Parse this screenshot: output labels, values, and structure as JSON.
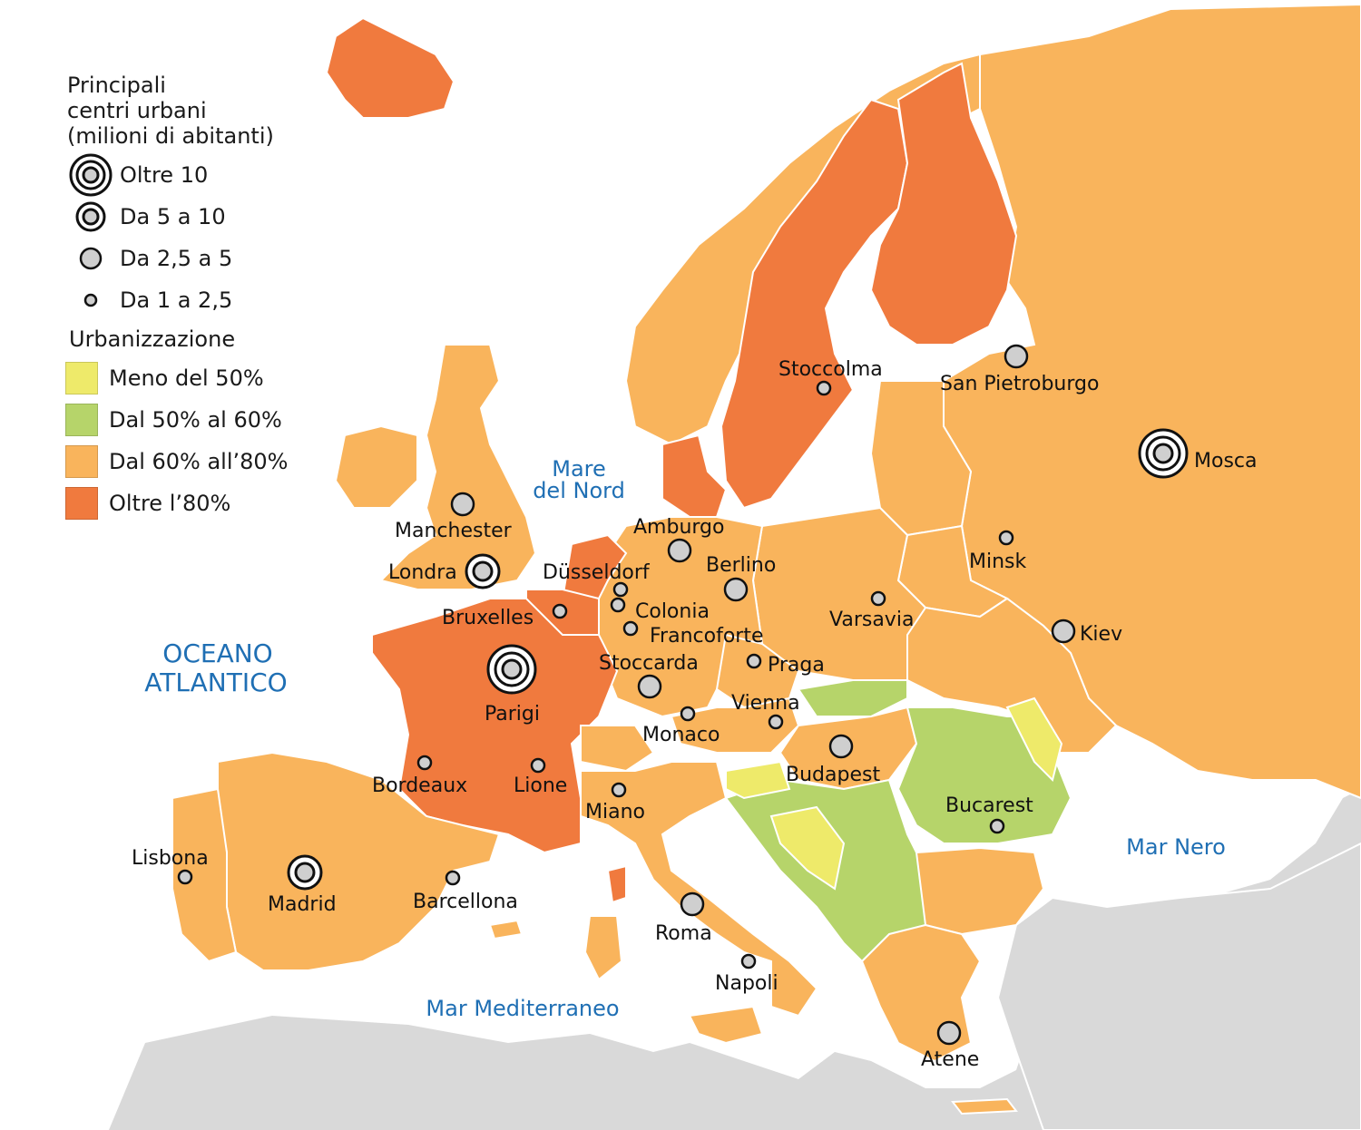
{
  "legend": {
    "cities_title_lines": [
      "Principali",
      "centri urbani",
      "(milioni di abitanti)"
    ],
    "sizes": [
      {
        "label": "Oltre 10",
        "icon": "triple-ring-icon"
      },
      {
        "label": "Da 5 a 10",
        "icon": "double-ring-icon"
      },
      {
        "label": "Da 2,5 a 5",
        "icon": "medium-dot-icon"
      },
      {
        "label": "Da 1 a 2,5",
        "icon": "small-dot-icon"
      }
    ],
    "urbanization_title": "Urbanizzazione",
    "classes": [
      {
        "label": "Meno del 50%",
        "color": "#eeea6a"
      },
      {
        "label": "Dal 50% al 60%",
        "color": "#b6d46a"
      },
      {
        "label": "Dal 60% all’80%",
        "color": "#f9b45c"
      },
      {
        "label": "Oltre l’80%",
        "color": "#f07a3e"
      }
    ]
  },
  "seas": {
    "atlantic_line1": "OCEANO",
    "atlantic_line2": "ATLANTICO",
    "north_sea_line1": "Mare",
    "north_sea_line2": "del Nord",
    "mediterranean": "Mar Mediterraneo",
    "black_sea": "Mar Nero"
  },
  "cities": {
    "mosca": "Mosca",
    "londra": "Londra",
    "parigi": "Parigi",
    "madrid": "Madrid",
    "manchester": "Manchester",
    "san_pietroburgo": "San Pietroburgo",
    "amburgo": "Amburgo",
    "berlino": "Berlino",
    "stoccarda": "Stoccarda",
    "budapest": "Budapest",
    "roma": "Roma",
    "atene": "Atene",
    "kiev": "Kiev",
    "stoccolma": "Stoccolma",
    "minsk": "Minsk",
    "varsavia": "Varsavia",
    "dusseldorf": "Düsseldorf",
    "colonia": "Colonia",
    "francoforte": "Francoforte",
    "bruxelles": "Bruxelles",
    "praga": "Praga",
    "vienna": "Vienna",
    "monaco": "Monaco",
    "bordeaux": "Bordeaux",
    "lione": "Lione",
    "miano": "Miano",
    "lisbona": "Lisbona",
    "barcellona": "Barcellona",
    "bucarest": "Bucarest",
    "napoli": "Napoli"
  }
}
